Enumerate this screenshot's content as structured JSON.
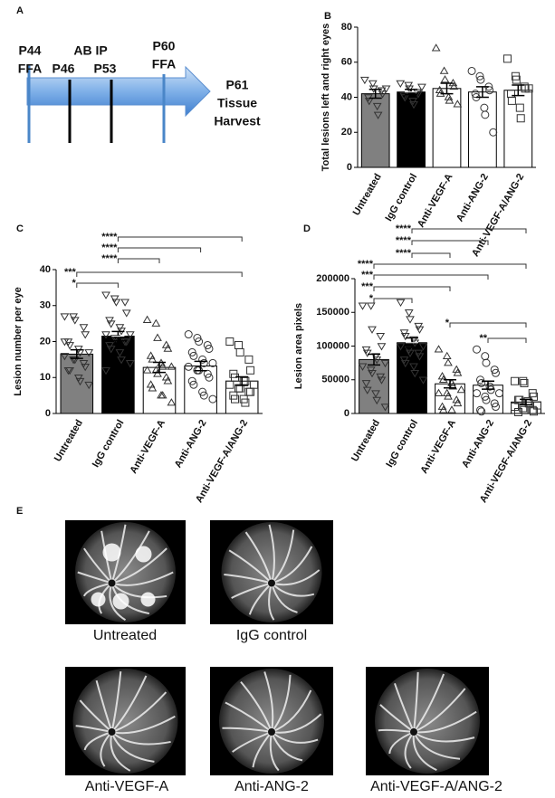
{
  "panel_a": {
    "letter": "A",
    "labels": [
      "P44",
      "FFA",
      "AB IP",
      "P46",
      "P53",
      "P60",
      "FFA",
      "P61",
      "Tissue",
      "Harvest"
    ]
  },
  "panel_e": {
    "letter": "E",
    "captions": [
      "Untreated",
      "IgG control",
      "Anti-VEGF-A",
      "Anti-ANG-2",
      "Anti-VEGF-A/ANG-2"
    ]
  },
  "chart_data": [
    {
      "type": "bar",
      "letter": "B",
      "ylabel": "Total lesions left and right eyes",
      "categories": [
        "Untreated",
        "IgG control",
        "Anti-VEGF-A",
        "Anti-ANG-2",
        "Anti-VEGF-A/ANG-2"
      ],
      "values": [
        42,
        43,
        45,
        43,
        44
      ],
      "errors": [
        2.5,
        1.5,
        3,
        3,
        3
      ],
      "colors": [
        "#808080",
        "#000000",
        "#ffffff",
        "#ffffff",
        "#ffffff"
      ],
      "markers": [
        "down",
        "down",
        "up",
        "circle",
        "square"
      ],
      "points": [
        [
          50,
          48,
          45,
          44,
          42,
          40,
          38,
          35,
          30,
          45
        ],
        [
          48,
          47,
          45,
          43,
          42,
          41,
          40,
          38,
          36,
          46
        ],
        [
          68,
          55,
          50,
          48,
          46,
          44,
          42,
          40,
          38,
          36
        ],
        [
          55,
          52,
          50,
          46,
          44,
          42,
          40,
          34,
          30,
          20
        ],
        [
          62,
          52,
          50,
          46,
          45,
          42,
          38,
          34,
          28,
          45
        ]
      ],
      "ylim": [
        0,
        80
      ],
      "yticks": [
        0,
        20,
        40,
        60,
        80
      ],
      "annotations": []
    },
    {
      "type": "bar",
      "letter": "C",
      "ylabel": "Lesion number per eye",
      "categories": [
        "Untreated",
        "IgG control",
        "Anti-VEGF-A",
        "Anti-ANG-2",
        "Anti-VEGF-A/ANG-2"
      ],
      "values": [
        16.5,
        21.5,
        12.8,
        13.2,
        9
      ],
      "errors": [
        1.2,
        1.3,
        1.4,
        1.3,
        1.2
      ],
      "colors": [
        "#808080",
        "#000000",
        "#ffffff",
        "#ffffff",
        "#ffffff"
      ],
      "markers": [
        "down",
        "down",
        "up",
        "circle",
        "square"
      ],
      "points": [
        [
          27,
          27,
          26,
          24,
          22,
          20,
          19,
          18,
          17,
          17,
          16,
          15,
          15,
          14,
          13,
          12,
          12,
          10,
          9,
          8,
          20
        ],
        [
          33,
          32,
          31,
          31,
          28,
          26,
          25,
          24,
          23,
          22,
          22,
          21,
          21,
          20,
          20,
          19,
          18,
          17,
          15,
          14,
          12
        ],
        [
          26,
          25,
          21,
          19,
          18,
          16,
          15,
          14,
          13,
          13,
          12,
          12,
          11,
          10,
          9,
          8,
          7,
          5,
          5,
          3
        ],
        [
          22,
          21,
          20,
          19,
          18,
          17,
          16,
          15,
          14,
          14,
          13,
          12,
          12,
          11,
          10,
          9,
          8,
          6,
          5,
          4
        ],
        [
          20,
          19,
          17,
          15,
          12,
          11,
          10,
          9,
          9,
          8,
          8,
          7,
          7,
          6,
          6,
          5,
          4,
          4,
          3
        ]
      ],
      "ylim": [
        0,
        40
      ],
      "yticks": [
        0,
        10,
        20,
        30,
        40
      ],
      "annotations": [
        {
          "from": 1,
          "to": 4,
          "label": "****"
        },
        {
          "from": 1,
          "to": 3,
          "label": "****"
        },
        {
          "from": 1,
          "to": 2,
          "label": "****"
        },
        {
          "from": 0,
          "to": 4,
          "label": "***"
        },
        {
          "from": 0,
          "to": 1,
          "label": "*"
        }
      ]
    },
    {
      "type": "bar",
      "letter": "D",
      "ylabel": "Lesion area pixels",
      "categories": [
        "Untreated",
        "IgG control",
        "Anti-VEGF-A",
        "Anti-ANG-2",
        "Anti-VEGF-A/ANG-2"
      ],
      "values": [
        80000,
        105000,
        44000,
        42000,
        17000
      ],
      "errors": [
        8000,
        7000,
        6000,
        6000,
        4000
      ],
      "colors": [
        "#808080",
        "#000000",
        "#ffffff",
        "#ffffff",
        "#ffffff"
      ],
      "markers": [
        "down",
        "down",
        "up",
        "circle",
        "square"
      ],
      "points": [
        [
          160000,
          160000,
          125000,
          115000,
          100000,
          95000,
          90000,
          85000,
          80000,
          75000,
          70000,
          65000,
          60000,
          55000,
          50000,
          45000,
          35000,
          30000,
          20000,
          10000
        ],
        [
          165000,
          150000,
          140000,
          130000,
          125000,
          120000,
          115000,
          110000,
          105000,
          100000,
          100000,
          95000,
          90000,
          90000,
          85000,
          80000,
          75000,
          70000,
          60000,
          50000
        ],
        [
          95000,
          85000,
          75000,
          65000,
          60000,
          55000,
          50000,
          45000,
          40000,
          35000,
          30000,
          30000,
          25000,
          20000,
          15000,
          10000,
          5000,
          5000
        ],
        [
          95000,
          85000,
          75000,
          65000,
          60000,
          50000,
          45000,
          40000,
          35000,
          30000,
          30000,
          25000,
          20000,
          15000,
          10000,
          5000,
          3000
        ],
        [
          48000,
          48000,
          45000,
          30000,
          25000,
          20000,
          20000,
          18000,
          15000,
          12000,
          10000,
          8000,
          5000,
          5000,
          3000,
          2000
        ]
      ],
      "ylim": [
        0,
        200000
      ],
      "yticks": [
        0,
        50000,
        100000,
        150000,
        200000
      ],
      "annotations": [
        {
          "from": 1,
          "to": 4,
          "label": "****"
        },
        {
          "from": 1,
          "to": 3,
          "label": "****"
        },
        {
          "from": 1,
          "to": 2,
          "label": "****"
        },
        {
          "from": 0,
          "to": 4,
          "label": "****"
        },
        {
          "from": 0,
          "to": 3,
          "label": "***"
        },
        {
          "from": 0,
          "to": 2,
          "label": "***"
        },
        {
          "from": 0,
          "to": 1,
          "label": "*"
        },
        {
          "from": 2,
          "to": 4,
          "label": "*"
        },
        {
          "from": 3,
          "to": 4,
          "label": "**"
        }
      ]
    }
  ]
}
